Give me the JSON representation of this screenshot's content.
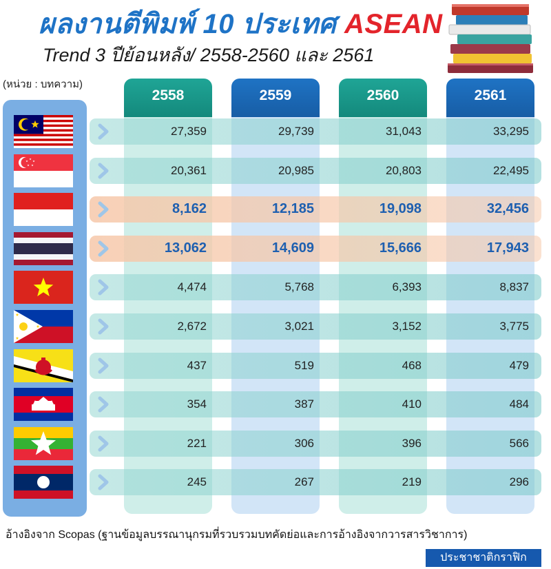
{
  "title": {
    "prefix": "ผลงานตีพิมพ์ 10 ประเทศ",
    "highlight": "ASEAN"
  },
  "subtitle": "Trend 3 ปีย้อนหลัง/ 2558-2560 และ 2561",
  "unit_label": "(หน่วย : บทความ)",
  "source": "อ้างอิงจาก Scopas (ฐานข้อมูลบรรณานุกรมที่รวบรวมบทคัดย่อและการอ้างอิงจากวารสารวิชาการ)",
  "credit": "ประชาชาติกราฟิก",
  "colors": {
    "teal": "#1a9e8f",
    "blue": "#1f6fbf",
    "highlight_text": "#1d5fb0",
    "title_red": "#e3242b"
  },
  "chart_data": {
    "type": "table",
    "years": [
      "2558",
      "2559",
      "2560",
      "2561"
    ],
    "rows": [
      {
        "flag": "malaysia-flag",
        "values": [
          "27,359",
          "29,739",
          "31,043",
          "33,295"
        ],
        "highlight": false
      },
      {
        "flag": "singapore-flag",
        "values": [
          "20,361",
          "20,985",
          "20,803",
          "22,495"
        ],
        "highlight": false
      },
      {
        "flag": "indonesia-flag",
        "values": [
          "8,162",
          "12,185",
          "19,098",
          "32,456"
        ],
        "highlight": true
      },
      {
        "flag": "thailand-flag",
        "values": [
          "13,062",
          "14,609",
          "15,666",
          "17,943"
        ],
        "highlight": true
      },
      {
        "flag": "vietnam-flag",
        "values": [
          "4,474",
          "5,768",
          "6,393",
          "8,837"
        ],
        "highlight": false
      },
      {
        "flag": "philippines-flag",
        "values": [
          "2,672",
          "3,021",
          "3,152",
          "3,775"
        ],
        "highlight": false
      },
      {
        "flag": "brunei-flag",
        "values": [
          "437",
          "519",
          "468",
          "479"
        ],
        "highlight": false
      },
      {
        "flag": "cambodia-flag",
        "values": [
          "354",
          "387",
          "410",
          "484"
        ],
        "highlight": false
      },
      {
        "flag": "myanmar-flag",
        "values": [
          "221",
          "306",
          "396",
          "566"
        ],
        "highlight": false
      },
      {
        "flag": "laos-flag",
        "values": [
          "245",
          "267",
          "219",
          "296"
        ],
        "highlight": false
      }
    ]
  }
}
